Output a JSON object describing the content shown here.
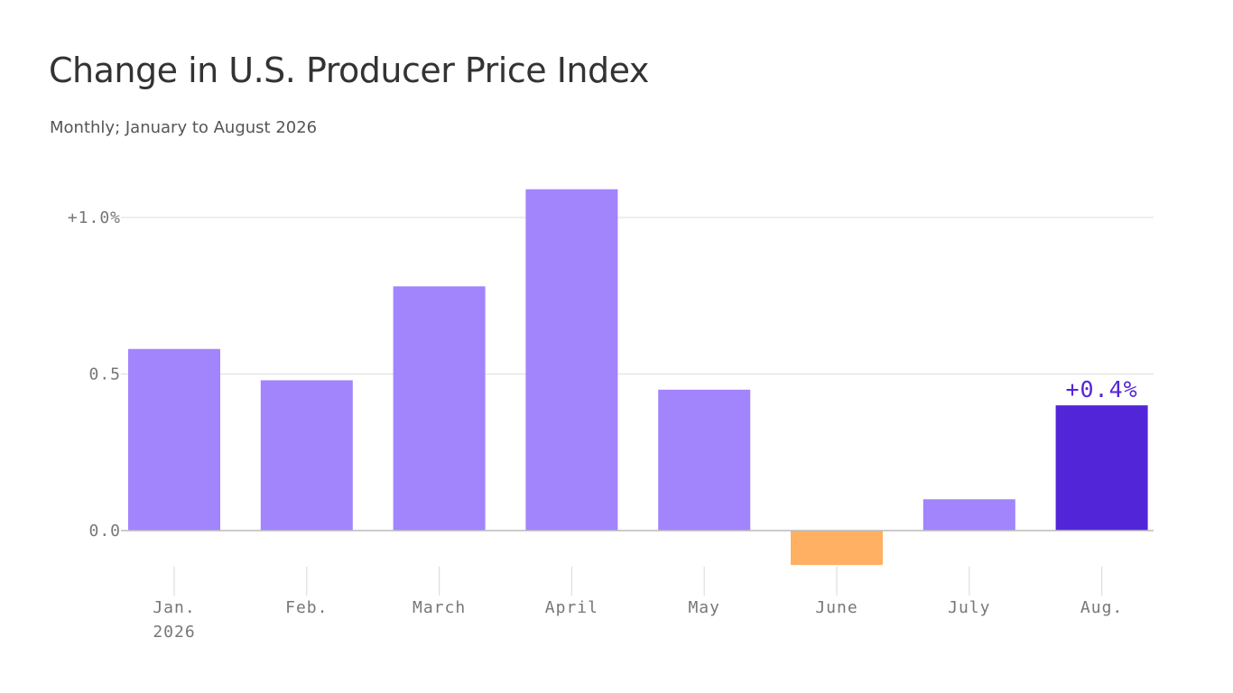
{
  "title": "Change in U.S. Producer Price Index",
  "subtitle": "Monthly; January to August 2026",
  "chart_data": {
    "type": "bar",
    "title": "Change in U.S. Producer Price Index",
    "subtitle": "Monthly; January to August 2026",
    "xlabel": "",
    "ylabel": "",
    "categories": [
      [
        "Jan.",
        "2026"
      ],
      [
        "Feb."
      ],
      [
        "March"
      ],
      [
        "April"
      ],
      [
        "May"
      ],
      [
        "June"
      ],
      [
        "July"
      ],
      [
        "Aug."
      ]
    ],
    "values": [
      0.58,
      0.48,
      0.78,
      1.09,
      0.45,
      -0.11,
      0.1,
      0.4
    ],
    "ylim": [
      -0.11,
      1.09
    ],
    "yticks": [
      {
        "value": 1.0,
        "label": "+1.0%"
      },
      {
        "value": 0.5,
        "label": "0.5"
      },
      {
        "value": 0.0,
        "label": "0.0"
      }
    ],
    "grid": true,
    "legend": "none",
    "annotations": [
      {
        "category_index": 7,
        "text": "+0.4%"
      }
    ],
    "colors": {
      "positive": "#a284fd",
      "negative": "#ffb062",
      "highlight": "#5325d9",
      "annotation": "#5325d9",
      "grid": "#dddddd",
      "baseline": "#bbbbbb",
      "tick_mark": "#dddddd"
    },
    "highlight_index": 7
  }
}
